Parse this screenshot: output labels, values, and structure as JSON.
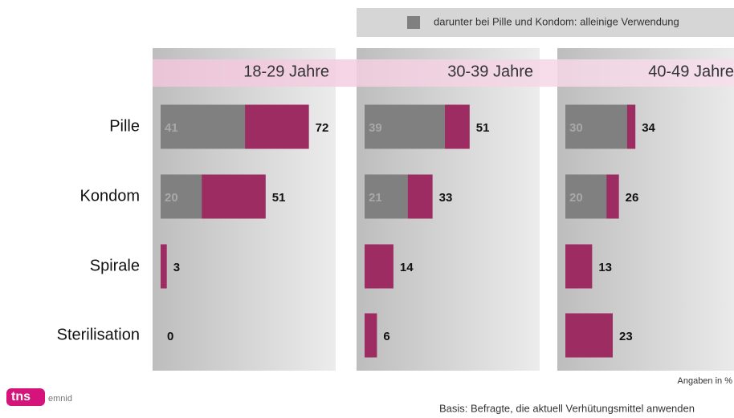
{
  "chart_data": {
    "type": "bar",
    "orientation": "horizontal",
    "categories": [
      "Pille",
      "Kondom",
      "Spirale",
      "Sterilisation"
    ],
    "xlim": [
      0,
      85
    ],
    "series": [
      {
        "color": "#9c2c62"
      },
      {
        "name": "darunter bei Pille und Kondom:  alleinige Verwendung",
        "color": "#808080"
      }
    ],
    "panels": [
      {
        "title": "18-29 Jahre",
        "values": [
          [
            72,
            51,
            3,
            0
          ],
          [
            41,
            20,
            null,
            null
          ]
        ]
      },
      {
        "title": "30-39 Jahre",
        "values": [
          [
            51,
            33,
            14,
            6
          ],
          [
            39,
            21,
            null,
            null
          ]
        ]
      },
      {
        "title": "40-49 Jahre",
        "values": [
          [
            34,
            26,
            13,
            23
          ],
          [
            30,
            20,
            null,
            null
          ]
        ]
      }
    ],
    "note": "Angaben in %",
    "basis": "Basis: Befragte, die aktuell Verhütungsmittel anwenden",
    "logo": {
      "brand": "tns",
      "sub": "emnid"
    }
  }
}
